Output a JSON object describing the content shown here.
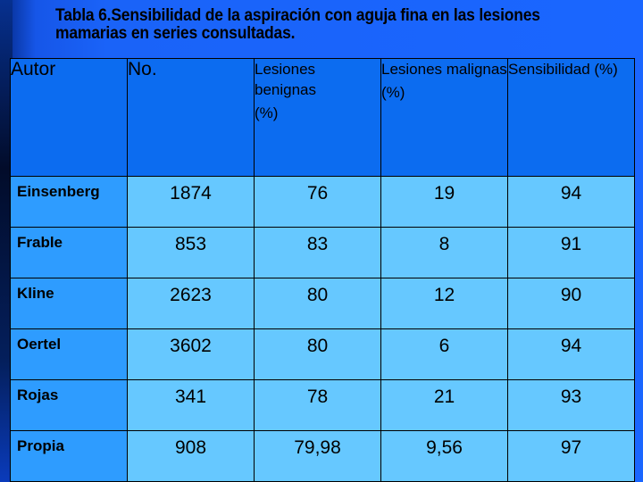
{
  "title": "Tabla 6.Sensibilidad de la aspiración con aguja fina en las lesiones mamarias en series consultadas.",
  "colors": {
    "background": "#1a66ff",
    "header_cells": "#0c6cf0",
    "author_cells": "#2e9cff",
    "value_cells": "#66c8ff"
  },
  "table": {
    "headers": [
      {
        "label": "Autor",
        "unit": ""
      },
      {
        "label": "No.",
        "unit": ""
      },
      {
        "label": "Lesiones benignas",
        "unit": "(%)"
      },
      {
        "label": "Lesiones malignas",
        "unit": "(%)"
      },
      {
        "label": "Sensibilidad (%)",
        "unit": ""
      }
    ],
    "rows": [
      {
        "autor": "Einsenberg",
        "no": "1874",
        "benignas": "76",
        "malignas": "19",
        "sensibilidad": "94"
      },
      {
        "autor": "Frable",
        "no": "853",
        "benignas": "83",
        "malignas": "8",
        "sensibilidad": "91"
      },
      {
        "autor": "Kline",
        "no": "2623",
        "benignas": "80",
        "malignas": "12",
        "sensibilidad": "90"
      },
      {
        "autor": "Oertel",
        "no": "3602",
        "benignas": "80",
        "malignas": "6",
        "sensibilidad": "94"
      },
      {
        "autor": "Rojas",
        "no": "341",
        "benignas": "78",
        "malignas": "21",
        "sensibilidad": "93"
      },
      {
        "autor": "Propia",
        "no": "908",
        "benignas": "79,98",
        "malignas": "9,56",
        "sensibilidad": "97"
      }
    ]
  }
}
